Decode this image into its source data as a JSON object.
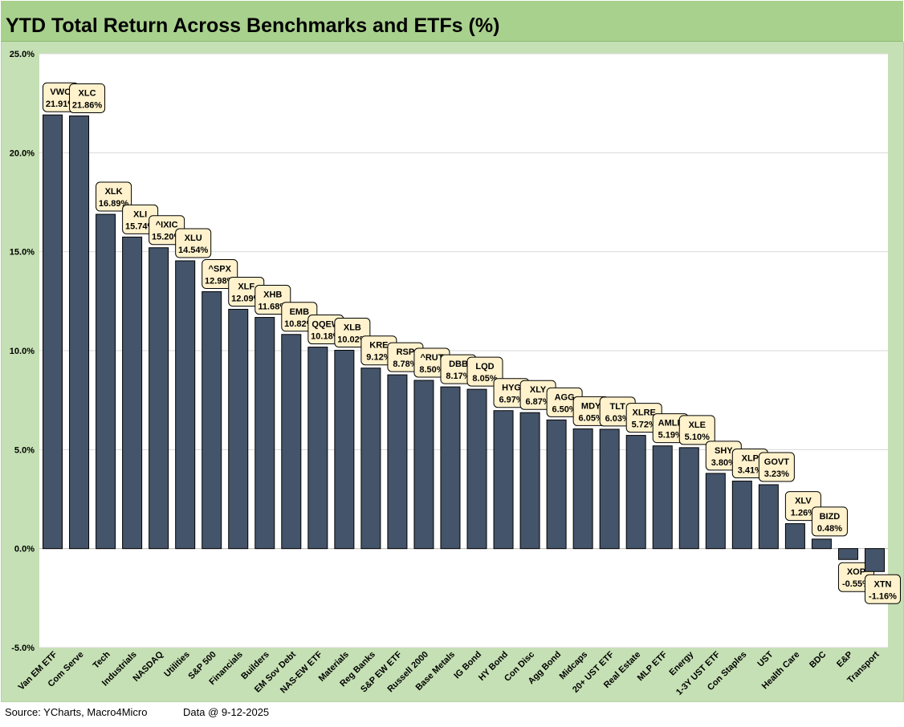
{
  "title": "YTD Total Return Across Benchmarks and ETFs (%)",
  "footer": {
    "source": "Source: YCharts, Macro4Micro",
    "as_of": "Data @ 9-12-2025"
  },
  "colors": {
    "title_bg": "#a9d18e",
    "frame_bg": "#c5e0b4",
    "plot_bg": "#ffffff",
    "bar": "#44546a",
    "label_bg": "#fff2cc"
  },
  "chart_data": {
    "type": "bar",
    "title": "YTD Total Return Across Benchmarks and ETFs (%)",
    "xlabel": "",
    "ylabel": "",
    "ylim": [
      -5,
      25
    ],
    "yticks": [
      "-5.0%",
      "0.0%",
      "5.0%",
      "10.0%",
      "15.0%",
      "20.0%",
      "25.0%"
    ],
    "grid": true,
    "categories": [
      "Van EM ETF",
      "Com Serve",
      "Tech",
      "Industrials",
      "NASDAQ",
      "Utilities",
      "S&P 500",
      "Financials",
      "Builders",
      "EM Sov Debt",
      "NAS-EW ETF",
      "Materials",
      "Reg Banks",
      "S&P EW ETF",
      "Russell 2000",
      "Base Metals",
      "IG Bond",
      "HY Bond",
      "Con Disc",
      "Agg Bond",
      "Midcaps",
      "20+ UST ETF",
      "Real Estate",
      "MLP ETF",
      "Energy",
      "1-3Y UST ETF",
      "Con Staples",
      "UST",
      "Health Care",
      "BDC",
      "E&P",
      "Transport"
    ],
    "tickers": [
      "VWO",
      "XLC",
      "XLK",
      "XLI",
      "^IXIC",
      "XLU",
      "^SPX",
      "XLF",
      "XHB",
      "EMB",
      "QQEW",
      "XLB",
      "KRE",
      "RSP",
      "^RUT",
      "DBB",
      "LQD",
      "HYG",
      "XLY",
      "AGG",
      "MDY",
      "TLT",
      "XLRE",
      "AMLP",
      "XLE",
      "SHY",
      "XLP",
      "GOVT",
      "XLV",
      "BIZD",
      "XOP",
      "XTN"
    ],
    "value_labels": [
      "21.91%",
      "21.86%",
      "16.89%",
      "15.74%",
      "15.20%",
      "14.54%",
      "12.98%",
      "12.09%",
      "11.68%",
      "10.82%",
      "10.18%",
      "10.02%",
      "9.12%",
      "8.78%",
      "8.50%",
      "8.17%",
      "8.05%",
      "6.97%",
      "6.87%",
      "6.50%",
      "6.05%",
      "6.03%",
      "5.72%",
      "5.19%",
      "5.10%",
      "3.80%",
      "3.41%",
      "3.23%",
      "1.26%",
      "0.48%",
      "-0.55%",
      "-1.16%"
    ],
    "values": [
      21.91,
      21.86,
      16.89,
      15.74,
      15.2,
      14.54,
      12.98,
      12.09,
      11.68,
      10.82,
      10.18,
      10.02,
      9.12,
      8.78,
      8.5,
      8.17,
      8.05,
      6.97,
      6.87,
      6.5,
      6.05,
      6.03,
      5.72,
      5.19,
      5.1,
      3.8,
      3.41,
      3.23,
      1.26,
      0.48,
      -0.55,
      -1.16
    ]
  }
}
